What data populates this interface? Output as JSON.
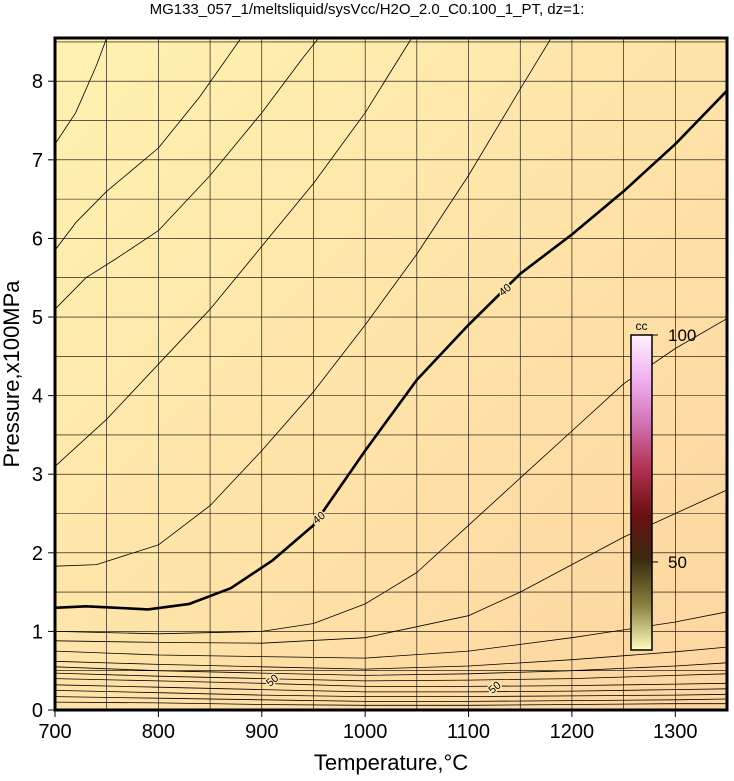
{
  "chart_data": {
    "type": "contour",
    "title": "MG133_057_1/meltsliquid/sysVcc/H2O_2.0_C0.100_1_PT, dz=1:",
    "x_label": "Temperature,°C",
    "y_label": "Pressure,x100MPa",
    "xlim": [
      700,
      1350
    ],
    "ylim": [
      0,
      8.55
    ],
    "xticks": [
      700,
      800,
      900,
      1000,
      1100,
      1200,
      1300
    ],
    "yticks": [
      0,
      1,
      2,
      3,
      4,
      5,
      6,
      7,
      8
    ],
    "xgrid": [
      750,
      800,
      850,
      900,
      950,
      1000,
      1050,
      1100,
      1150,
      1200,
      1250,
      1300
    ],
    "ygrid": [
      0.5,
      1,
      1.5,
      2,
      2.5,
      3,
      3.5,
      4,
      4.5,
      5,
      5.5,
      6,
      6.5,
      7,
      7.5,
      8,
      8.5
    ],
    "line_color": "#000000",
    "series": [
      {
        "level": 40,
        "bold": true,
        "label_at": [
          [
            955,
            2.45
          ],
          [
            1135,
            5.35
          ]
        ],
        "x": [
          700,
          730,
          760,
          790,
          830,
          870,
          910,
          950,
          1000,
          1050,
          1100,
          1150,
          1200,
          1250,
          1300,
          1350
        ],
        "y": [
          1.3,
          1.32,
          1.3,
          1.28,
          1.35,
          1.55,
          1.9,
          2.35,
          3.3,
          4.2,
          4.9,
          5.55,
          6.05,
          6.6,
          7.2,
          7.88
        ]
      },
      {
        "x": [
          700,
          740,
          800,
          850,
          900,
          950,
          1000,
          1050,
          1100,
          1150,
          1180
        ],
        "y": [
          1.83,
          1.85,
          2.1,
          2.6,
          3.3,
          4.05,
          4.9,
          5.8,
          6.8,
          7.9,
          8.55
        ]
      },
      {
        "x": [
          700,
          750,
          800,
          850,
          900,
          950,
          1000,
          1045
        ],
        "y": [
          3.1,
          3.7,
          4.4,
          5.1,
          5.9,
          6.7,
          7.6,
          8.55
        ]
      },
      {
        "x": [
          700,
          730,
          760,
          800,
          850,
          900,
          940,
          955
        ],
        "y": [
          5.1,
          5.5,
          5.75,
          6.1,
          6.8,
          7.6,
          8.3,
          8.55
        ]
      },
      {
        "x": [
          700,
          720,
          750,
          800,
          840,
          880
        ],
        "y": [
          5.85,
          6.2,
          6.6,
          7.15,
          7.8,
          8.55
        ]
      },
      {
        "x": [
          700,
          720,
          740,
          750
        ],
        "y": [
          7.2,
          7.6,
          8.2,
          8.55
        ]
      },
      {
        "x": [
          700,
          800,
          900,
          950,
          1000,
          1050,
          1100,
          1150,
          1200,
          1250,
          1300,
          1350
        ],
        "y": [
          1.0,
          0.97,
          1.0,
          1.1,
          1.35,
          1.75,
          2.35,
          2.95,
          3.55,
          4.15,
          4.6,
          4.98
        ]
      },
      {
        "x": [
          700,
          800,
          900,
          1000,
          1100,
          1150,
          1200,
          1250,
          1300,
          1350
        ],
        "y": [
          0.88,
          0.86,
          0.85,
          0.92,
          1.2,
          1.5,
          1.85,
          2.2,
          2.5,
          2.8
        ]
      },
      {
        "x": [
          700,
          800,
          900,
          1000,
          1100,
          1200,
          1300,
          1350
        ],
        "y": [
          0.75,
          0.7,
          0.68,
          0.66,
          0.75,
          0.92,
          1.12,
          1.25
        ]
      },
      {
        "x": [
          700,
          800,
          900,
          1000,
          1100,
          1200,
          1300,
          1350
        ],
        "y": [
          0.62,
          0.58,
          0.55,
          0.52,
          0.56,
          0.64,
          0.74,
          0.8
        ]
      },
      {
        "x": [
          700,
          800,
          900,
          1000,
          1100,
          1200,
          1300,
          1350
        ],
        "y": [
          0.55,
          0.5,
          0.47,
          0.44,
          0.46,
          0.5,
          0.56,
          0.6
        ]
      },
      {
        "x": [
          700,
          800,
          900,
          1000,
          1100,
          1200,
          1300,
          1350
        ],
        "y": [
          0.47,
          0.43,
          0.4,
          0.37,
          0.38,
          0.4,
          0.44,
          0.46
        ]
      },
      {
        "level": 50,
        "label_at": [
          [
            910,
            0.38
          ],
          [
            1125,
            0.29
          ]
        ],
        "x": [
          700,
          800,
          900,
          1000,
          1100,
          1200,
          1300,
          1350
        ],
        "y": [
          0.4,
          0.37,
          0.34,
          0.3,
          0.3,
          0.31,
          0.33,
          0.34
        ]
      },
      {
        "x": [
          700,
          800,
          900,
          1000,
          1100,
          1200,
          1300,
          1350
        ],
        "y": [
          0.32,
          0.29,
          0.26,
          0.23,
          0.23,
          0.24,
          0.26,
          0.27
        ]
      },
      {
        "x": [
          700,
          800,
          900,
          1000,
          1100,
          1200,
          1300,
          1350
        ],
        "y": [
          0.25,
          0.22,
          0.19,
          0.17,
          0.17,
          0.18,
          0.19,
          0.2
        ]
      },
      {
        "x": [
          700,
          800,
          900,
          1000,
          1100,
          1200,
          1300,
          1350
        ],
        "y": [
          0.17,
          0.15,
          0.13,
          0.11,
          0.11,
          0.12,
          0.13,
          0.14
        ]
      },
      {
        "x": [
          700,
          800,
          900,
          1000,
          1100,
          1200,
          1300,
          1350
        ],
        "y": [
          0.1,
          0.09,
          0.07,
          0.06,
          0.06,
          0.07,
          0.08,
          0.08
        ]
      }
    ],
    "colorbar": {
      "title": "cc",
      "lim": [
        30.6,
        100
      ],
      "ticks": [
        50,
        100
      ],
      "colors": [
        "#ffffc0",
        "#8a8040",
        "#3a2a10",
        "#6a1010",
        "#b03050",
        "#d070b0",
        "#f0b0f0",
        "#fff0ff"
      ]
    }
  }
}
